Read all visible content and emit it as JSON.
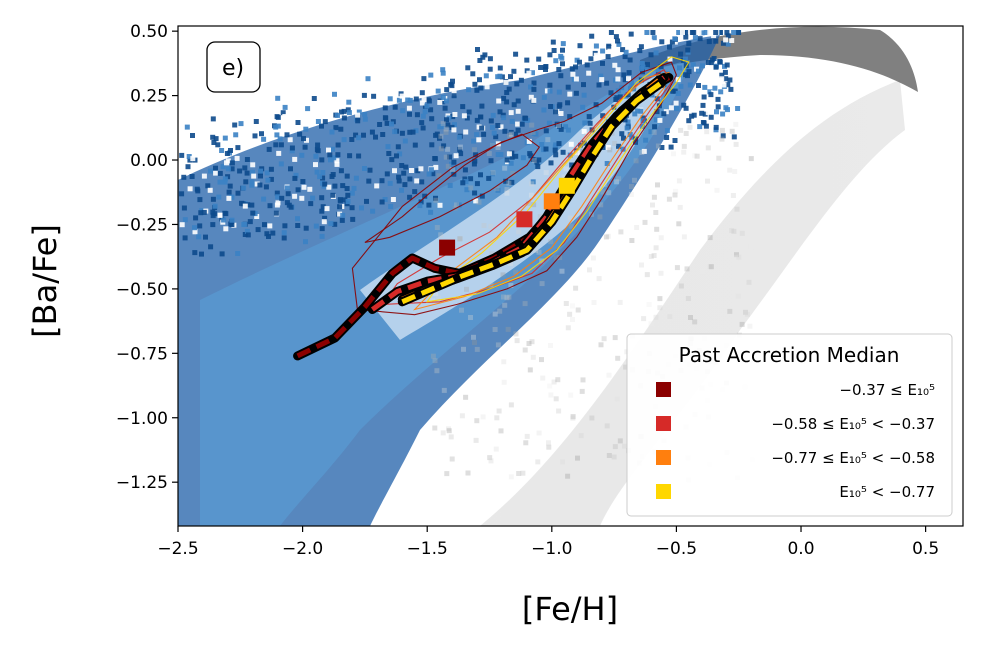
{
  "chart_data": {
    "type": "scatter",
    "panel_label": "e)",
    "xlabel": "[Fe/H]",
    "ylabel": "[Ba/Fe]",
    "xlim": [
      -2.5,
      0.65
    ],
    "ylim": [
      -1.42,
      0.52
    ],
    "xticks": [
      -2.5,
      -2.0,
      -1.5,
      -1.0,
      -0.5,
      0.0,
      0.5
    ],
    "xtick_labels": [
      "−2.5",
      "−2.0",
      "−1.5",
      "−1.0",
      "−0.5",
      "0.0",
      "0.5"
    ],
    "yticks": [
      0.5,
      0.25,
      0.0,
      -0.25,
      -0.5,
      -0.75,
      -1.0,
      -1.25
    ],
    "ytick_labels": [
      "0.50",
      "0.25",
      "0.00",
      "−0.25",
      "−0.50",
      "−0.75",
      "−1.00",
      "−1.25"
    ],
    "colors": {
      "bin1": "#8b0000",
      "bin2": "#d62a28",
      "bin3": "#ff7f0e",
      "bin4": "#ffd700",
      "median_outline": "#000000",
      "density_blue": "#0d4a8c",
      "density_grey": "#888888"
    },
    "legend": {
      "title": "Past Accretion Median",
      "entries": [
        {
          "label": "−0.37 ≤ E₁₀⁵",
          "color_key": "bin1"
        },
        {
          "label": "−0.58 ≤ E₁₀⁵ < −0.37",
          "color_key": "bin2"
        },
        {
          "label": "−0.77 ≤ E₁₀⁵ < −0.58",
          "color_key": "bin3"
        },
        {
          "label": "E₁₀⁵ < −0.77",
          "color_key": "bin4"
        }
      ]
    },
    "median_markers": [
      {
        "x": -1.42,
        "y": -0.34,
        "color_key": "bin1"
      },
      {
        "x": -1.11,
        "y": -0.23,
        "color_key": "bin2"
      },
      {
        "x": -1.0,
        "y": -0.16,
        "color_key": "bin3"
      },
      {
        "x": -0.94,
        "y": -0.1,
        "color_key": "bin4"
      }
    ],
    "series": [
      {
        "name": "bin1 median track",
        "color_key": "bin1",
        "x": [
          -2.02,
          -1.87,
          -1.75,
          -1.64,
          -1.56,
          -1.47,
          -1.37,
          -1.23,
          -1.09,
          -0.98,
          -0.88,
          -0.8,
          -0.72,
          -0.62,
          -0.53
        ],
        "y": [
          -0.76,
          -0.69,
          -0.57,
          -0.44,
          -0.38,
          -0.42,
          -0.44,
          -0.38,
          -0.3,
          -0.18,
          -0.04,
          0.09,
          0.19,
          0.27,
          0.32
        ]
      },
      {
        "name": "bin2 median track",
        "color_key": "bin2",
        "x": [
          -1.72,
          -1.62,
          -1.5,
          -1.38,
          -1.24,
          -1.12,
          -1.02,
          -0.93,
          -0.84,
          -0.74,
          -0.64,
          -0.55
        ],
        "y": [
          -0.58,
          -0.51,
          -0.47,
          -0.45,
          -0.4,
          -0.34,
          -0.22,
          -0.07,
          0.06,
          0.17,
          0.26,
          0.32
        ]
      },
      {
        "name": "bin3 median track",
        "color_key": "bin3",
        "x": [
          -1.6,
          -1.5,
          -1.38,
          -1.24,
          -1.12,
          -1.02,
          -0.93,
          -0.84,
          -0.76,
          -0.66,
          -0.57
        ],
        "y": [
          -0.54,
          -0.5,
          -0.46,
          -0.41,
          -0.36,
          -0.25,
          -0.12,
          0.02,
          0.14,
          0.24,
          0.31
        ]
      },
      {
        "name": "bin4 median track",
        "color_key": "bin4",
        "x": [
          -1.6,
          -1.48,
          -1.36,
          -1.22,
          -1.1,
          -1.0,
          -0.92,
          -0.84,
          -0.76,
          -0.66,
          -0.56
        ],
        "y": [
          -0.55,
          -0.5,
          -0.45,
          -0.4,
          -0.35,
          -0.24,
          -0.12,
          0.01,
          0.13,
          0.23,
          0.3
        ]
      }
    ],
    "contours": [
      {
        "color_key": "bin1",
        "x": [
          -1.78,
          -1.55,
          -1.38,
          -1.18,
          -1.02,
          -0.9,
          -0.8,
          -0.68,
          -0.56,
          -0.5,
          -0.52,
          -0.64,
          -0.8,
          -0.95,
          -1.05,
          -1.2,
          -1.4,
          -1.6,
          -1.8,
          -1.78
        ],
        "y": [
          -0.58,
          -0.6,
          -0.56,
          -0.5,
          -0.43,
          -0.3,
          -0.15,
          0.05,
          0.22,
          0.33,
          0.38,
          0.34,
          0.22,
          0.15,
          0.12,
          0.07,
          -0.03,
          -0.18,
          -0.42,
          -0.58
        ]
      },
      {
        "color_key": "bin1",
        "x": [
          -1.75,
          -1.6,
          -1.48,
          -1.35,
          -1.22,
          -1.12,
          -1.05,
          -1.1,
          -1.25,
          -1.45,
          -1.65,
          -1.75
        ],
        "y": [
          -0.32,
          -0.22,
          -0.12,
          -0.02,
          0.06,
          0.1,
          0.05,
          -0.02,
          -0.12,
          -0.22,
          -0.3,
          -0.32
        ]
      },
      {
        "color_key": "bin2",
        "x": [
          -1.68,
          -1.45,
          -1.25,
          -1.08,
          -0.95,
          -0.84,
          -0.72,
          -0.6,
          -0.52,
          -0.55,
          -0.68,
          -0.82,
          -0.95,
          -1.08,
          -1.25,
          -1.45,
          -1.62,
          -1.68
        ],
        "y": [
          -0.56,
          -0.55,
          -0.5,
          -0.44,
          -0.32,
          -0.15,
          0.03,
          0.2,
          0.3,
          0.35,
          0.28,
          0.14,
          0.0,
          -0.15,
          -0.28,
          -0.38,
          -0.48,
          -0.56
        ]
      },
      {
        "color_key": "bin3",
        "x": [
          -1.55,
          -1.35,
          -1.15,
          -1.0,
          -0.88,
          -0.76,
          -0.64,
          -0.55,
          -0.53,
          -0.62,
          -0.76,
          -0.9,
          -1.05,
          -1.22,
          -1.4,
          -1.55
        ],
        "y": [
          -0.58,
          -0.53,
          -0.45,
          -0.34,
          -0.18,
          0.0,
          0.17,
          0.28,
          0.34,
          0.32,
          0.2,
          0.04,
          -0.12,
          -0.3,
          -0.43,
          -0.58
        ]
      },
      {
        "color_key": "bin4",
        "x": [
          -1.5,
          -1.3,
          -1.12,
          -0.98,
          -0.86,
          -0.74,
          -0.62,
          -0.5,
          -0.45,
          -0.52,
          -0.66,
          -0.8,
          -0.95,
          -1.1,
          -1.28,
          -1.45,
          -1.5
        ],
        "y": [
          -0.55,
          -0.52,
          -0.45,
          -0.35,
          -0.2,
          -0.02,
          0.15,
          0.3,
          0.38,
          0.4,
          0.3,
          0.14,
          -0.02,
          -0.2,
          -0.36,
          -0.48,
          -0.55
        ]
      }
    ]
  }
}
